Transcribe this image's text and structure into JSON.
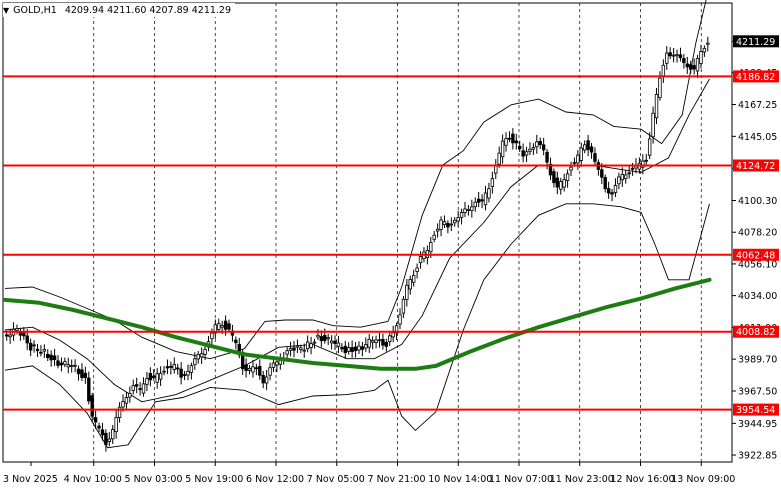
{
  "header": {
    "symbol_tf": "GOLD,H1",
    "ohlc": "4209.94 4211.60 4207.89 4211.29",
    "dropdown_icon": "triangle-down-icon"
  },
  "chart_data": {
    "type": "candlestick",
    "title": "",
    "symbol": "GOLD",
    "timeframe": "H1",
    "ylim": [
      3918,
      4238
    ],
    "grid": "vertical-dashed",
    "y_ticks": [
      "4211.29",
      "4189.45",
      "4167.25",
      "4145.05",
      "4122.85",
      "4100.30",
      "4078.20",
      "4056.10",
      "4034.00",
      "4011.90",
      "3989.70",
      "3967.50",
      "3944.95",
      "3922.85"
    ],
    "x_ticks": [
      "3 Nov 2025",
      "4 Nov 10:00",
      "5 Nov 03:00",
      "5 Nov 19:00",
      "6 Nov 12:00",
      "7 Nov 05:00",
      "7 Nov 21:00",
      "10 Nov 14:00",
      "11 Nov 07:00",
      "11 Nov 23:00",
      "12 Nov 16:00",
      "13 Nov 09:00"
    ],
    "current_price": 4211.29,
    "levels": [
      {
        "value": 4186.82,
        "label": "4186.82"
      },
      {
        "value": 4124.72,
        "label": "4124.72"
      },
      {
        "value": 4062.48,
        "label": "4062.48"
      },
      {
        "value": 4008.82,
        "label": "4008.82"
      },
      {
        "value": 3954.54,
        "label": "3954.54"
      }
    ],
    "colors": {
      "level_line": "#ff0000",
      "level_box": "#ff0000",
      "moving_average": "#1e7d12",
      "candles": "#000000",
      "bands": "#000000",
      "grid": "#000000",
      "price_box": "#000000"
    },
    "moving_average_path": [
      [
        0,
        4031
      ],
      [
        10,
        4029
      ],
      [
        20,
        4024
      ],
      [
        30,
        4018
      ],
      [
        40,
        4012
      ],
      [
        50,
        4005
      ],
      [
        60,
        3999
      ],
      [
        70,
        3993
      ],
      [
        80,
        3990
      ],
      [
        90,
        3987
      ],
      [
        100,
        3985
      ],
      [
        110,
        3983
      ],
      [
        120,
        3983
      ],
      [
        126,
        3985
      ],
      [
        136,
        3995
      ],
      [
        146,
        4004
      ],
      [
        156,
        4012
      ],
      [
        166,
        4019
      ],
      [
        176,
        4026
      ],
      [
        186,
        4032
      ],
      [
        196,
        4039
      ],
      [
        206,
        4045
      ]
    ],
    "upper_band_path": [
      [
        0,
        4039
      ],
      [
        8,
        4040
      ],
      [
        16,
        4033
      ],
      [
        24,
        4025
      ],
      [
        32,
        4017
      ],
      [
        40,
        4005
      ],
      [
        50,
        3995
      ],
      [
        60,
        3990
      ],
      [
        70,
        3997
      ],
      [
        76,
        4016
      ],
      [
        82,
        4017
      ],
      [
        90,
        4017
      ],
      [
        96,
        4013
      ],
      [
        104,
        4012
      ],
      [
        112,
        4016
      ],
      [
        116,
        4040
      ],
      [
        122,
        4090
      ],
      [
        128,
        4125
      ],
      [
        134,
        4135
      ],
      [
        140,
        4155
      ],
      [
        148,
        4167
      ],
      [
        156,
        4171
      ],
      [
        164,
        4162
      ],
      [
        172,
        4160
      ],
      [
        178,
        4152
      ],
      [
        186,
        4150
      ],
      [
        192,
        4140
      ],
      [
        198,
        4160
      ],
      [
        202,
        4210
      ],
      [
        206,
        4250
      ]
    ],
    "lower_band_path": [
      [
        0,
        3982
      ],
      [
        8,
        3985
      ],
      [
        16,
        3972
      ],
      [
        24,
        3952
      ],
      [
        30,
        3928
      ],
      [
        36,
        3930
      ],
      [
        44,
        3960
      ],
      [
        52,
        3963
      ],
      [
        60,
        3970
      ],
      [
        70,
        3968
      ],
      [
        80,
        3958
      ],
      [
        90,
        3964
      ],
      [
        100,
        3965
      ],
      [
        108,
        3968
      ],
      [
        112,
        3975
      ],
      [
        116,
        3950
      ],
      [
        120,
        3940
      ],
      [
        126,
        3953
      ],
      [
        134,
        4010
      ],
      [
        140,
        4045
      ],
      [
        148,
        4070
      ],
      [
        156,
        4090
      ],
      [
        164,
        4098
      ],
      [
        172,
        4098
      ],
      [
        180,
        4096
      ],
      [
        186,
        4092
      ],
      [
        190,
        4070
      ],
      [
        194,
        4045
      ],
      [
        200,
        4045
      ],
      [
        206,
        4098
      ]
    ],
    "mid_band_path": [
      [
        0,
        4010
      ],
      [
        8,
        4012
      ],
      [
        16,
        4003
      ],
      [
        24,
        3990
      ],
      [
        32,
        3972
      ],
      [
        40,
        3960
      ],
      [
        50,
        3965
      ],
      [
        60,
        3975
      ],
      [
        70,
        3985
      ],
      [
        80,
        3998
      ],
      [
        90,
        4000
      ],
      [
        100,
        3990
      ],
      [
        108,
        3990
      ],
      [
        116,
        4000
      ],
      [
        122,
        4020
      ],
      [
        130,
        4060
      ],
      [
        140,
        4085
      ],
      [
        148,
        4110
      ],
      [
        156,
        4125
      ],
      [
        164,
        4125
      ],
      [
        172,
        4125
      ],
      [
        180,
        4122
      ],
      [
        186,
        4120
      ],
      [
        194,
        4130
      ],
      [
        200,
        4160
      ],
      [
        206,
        4185
      ]
    ],
    "candles_close_path": [
      [
        0,
        4006
      ],
      [
        4,
        4010
      ],
      [
        8,
        3998
      ],
      [
        12,
        3995
      ],
      [
        16,
        3985
      ],
      [
        20,
        3987
      ],
      [
        24,
        3975
      ],
      [
        26,
        3950
      ],
      [
        28,
        3940
      ],
      [
        30,
        3932
      ],
      [
        32,
        3940
      ],
      [
        34,
        3955
      ],
      [
        36,
        3965
      ],
      [
        38,
        3970
      ],
      [
        40,
        3968
      ],
      [
        42,
        3978
      ],
      [
        44,
        3975
      ],
      [
        46,
        3980
      ],
      [
        48,
        3985
      ],
      [
        50,
        3984
      ],
      [
        52,
        3978
      ],
      [
        54,
        3982
      ],
      [
        56,
        3988
      ],
      [
        58,
        3995
      ],
      [
        60,
        4002
      ],
      [
        62,
        4012
      ],
      [
        64,
        4015
      ],
      [
        66,
        4010
      ],
      [
        68,
        4000
      ],
      [
        70,
        3985
      ],
      [
        72,
        3982
      ],
      [
        74,
        3983
      ],
      [
        76,
        3975
      ],
      [
        78,
        3982
      ],
      [
        80,
        3988
      ],
      [
        84,
        3996
      ],
      [
        88,
        3998
      ],
      [
        92,
        4005
      ],
      [
        96,
        4002
      ],
      [
        100,
        3996
      ],
      [
        104,
        3997
      ],
      [
        108,
        4003
      ],
      [
        112,
        4000
      ],
      [
        114,
        4010
      ],
      [
        116,
        4020
      ],
      [
        118,
        4040
      ],
      [
        120,
        4050
      ],
      [
        122,
        4060
      ],
      [
        124,
        4065
      ],
      [
        126,
        4078
      ],
      [
        128,
        4085
      ],
      [
        130,
        4082
      ],
      [
        132,
        4088
      ],
      [
        134,
        4090
      ],
      [
        136,
        4095
      ],
      [
        138,
        4100
      ],
      [
        140,
        4098
      ],
      [
        142,
        4110
      ],
      [
        144,
        4125
      ],
      [
        146,
        4140
      ],
      [
        148,
        4145
      ],
      [
        150,
        4140
      ],
      [
        152,
        4130
      ],
      [
        154,
        4138
      ],
      [
        156,
        4140
      ],
      [
        158,
        4135
      ],
      [
        160,
        4120
      ],
      [
        162,
        4108
      ],
      [
        164,
        4115
      ],
      [
        166,
        4125
      ],
      [
        168,
        4130
      ],
      [
        170,
        4140
      ],
      [
        172,
        4135
      ],
      [
        174,
        4120
      ],
      [
        176,
        4110
      ],
      [
        178,
        4105
      ],
      [
        180,
        4115
      ],
      [
        182,
        4120
      ],
      [
        184,
        4122
      ],
      [
        186,
        4125
      ],
      [
        188,
        4130
      ],
      [
        190,
        4160
      ],
      [
        192,
        4185
      ],
      [
        194,
        4205
      ],
      [
        196,
        4200
      ],
      [
        198,
        4200
      ],
      [
        200,
        4195
      ],
      [
        202,
        4190
      ],
      [
        204,
        4205
      ],
      [
        206,
        4211
      ]
    ]
  }
}
